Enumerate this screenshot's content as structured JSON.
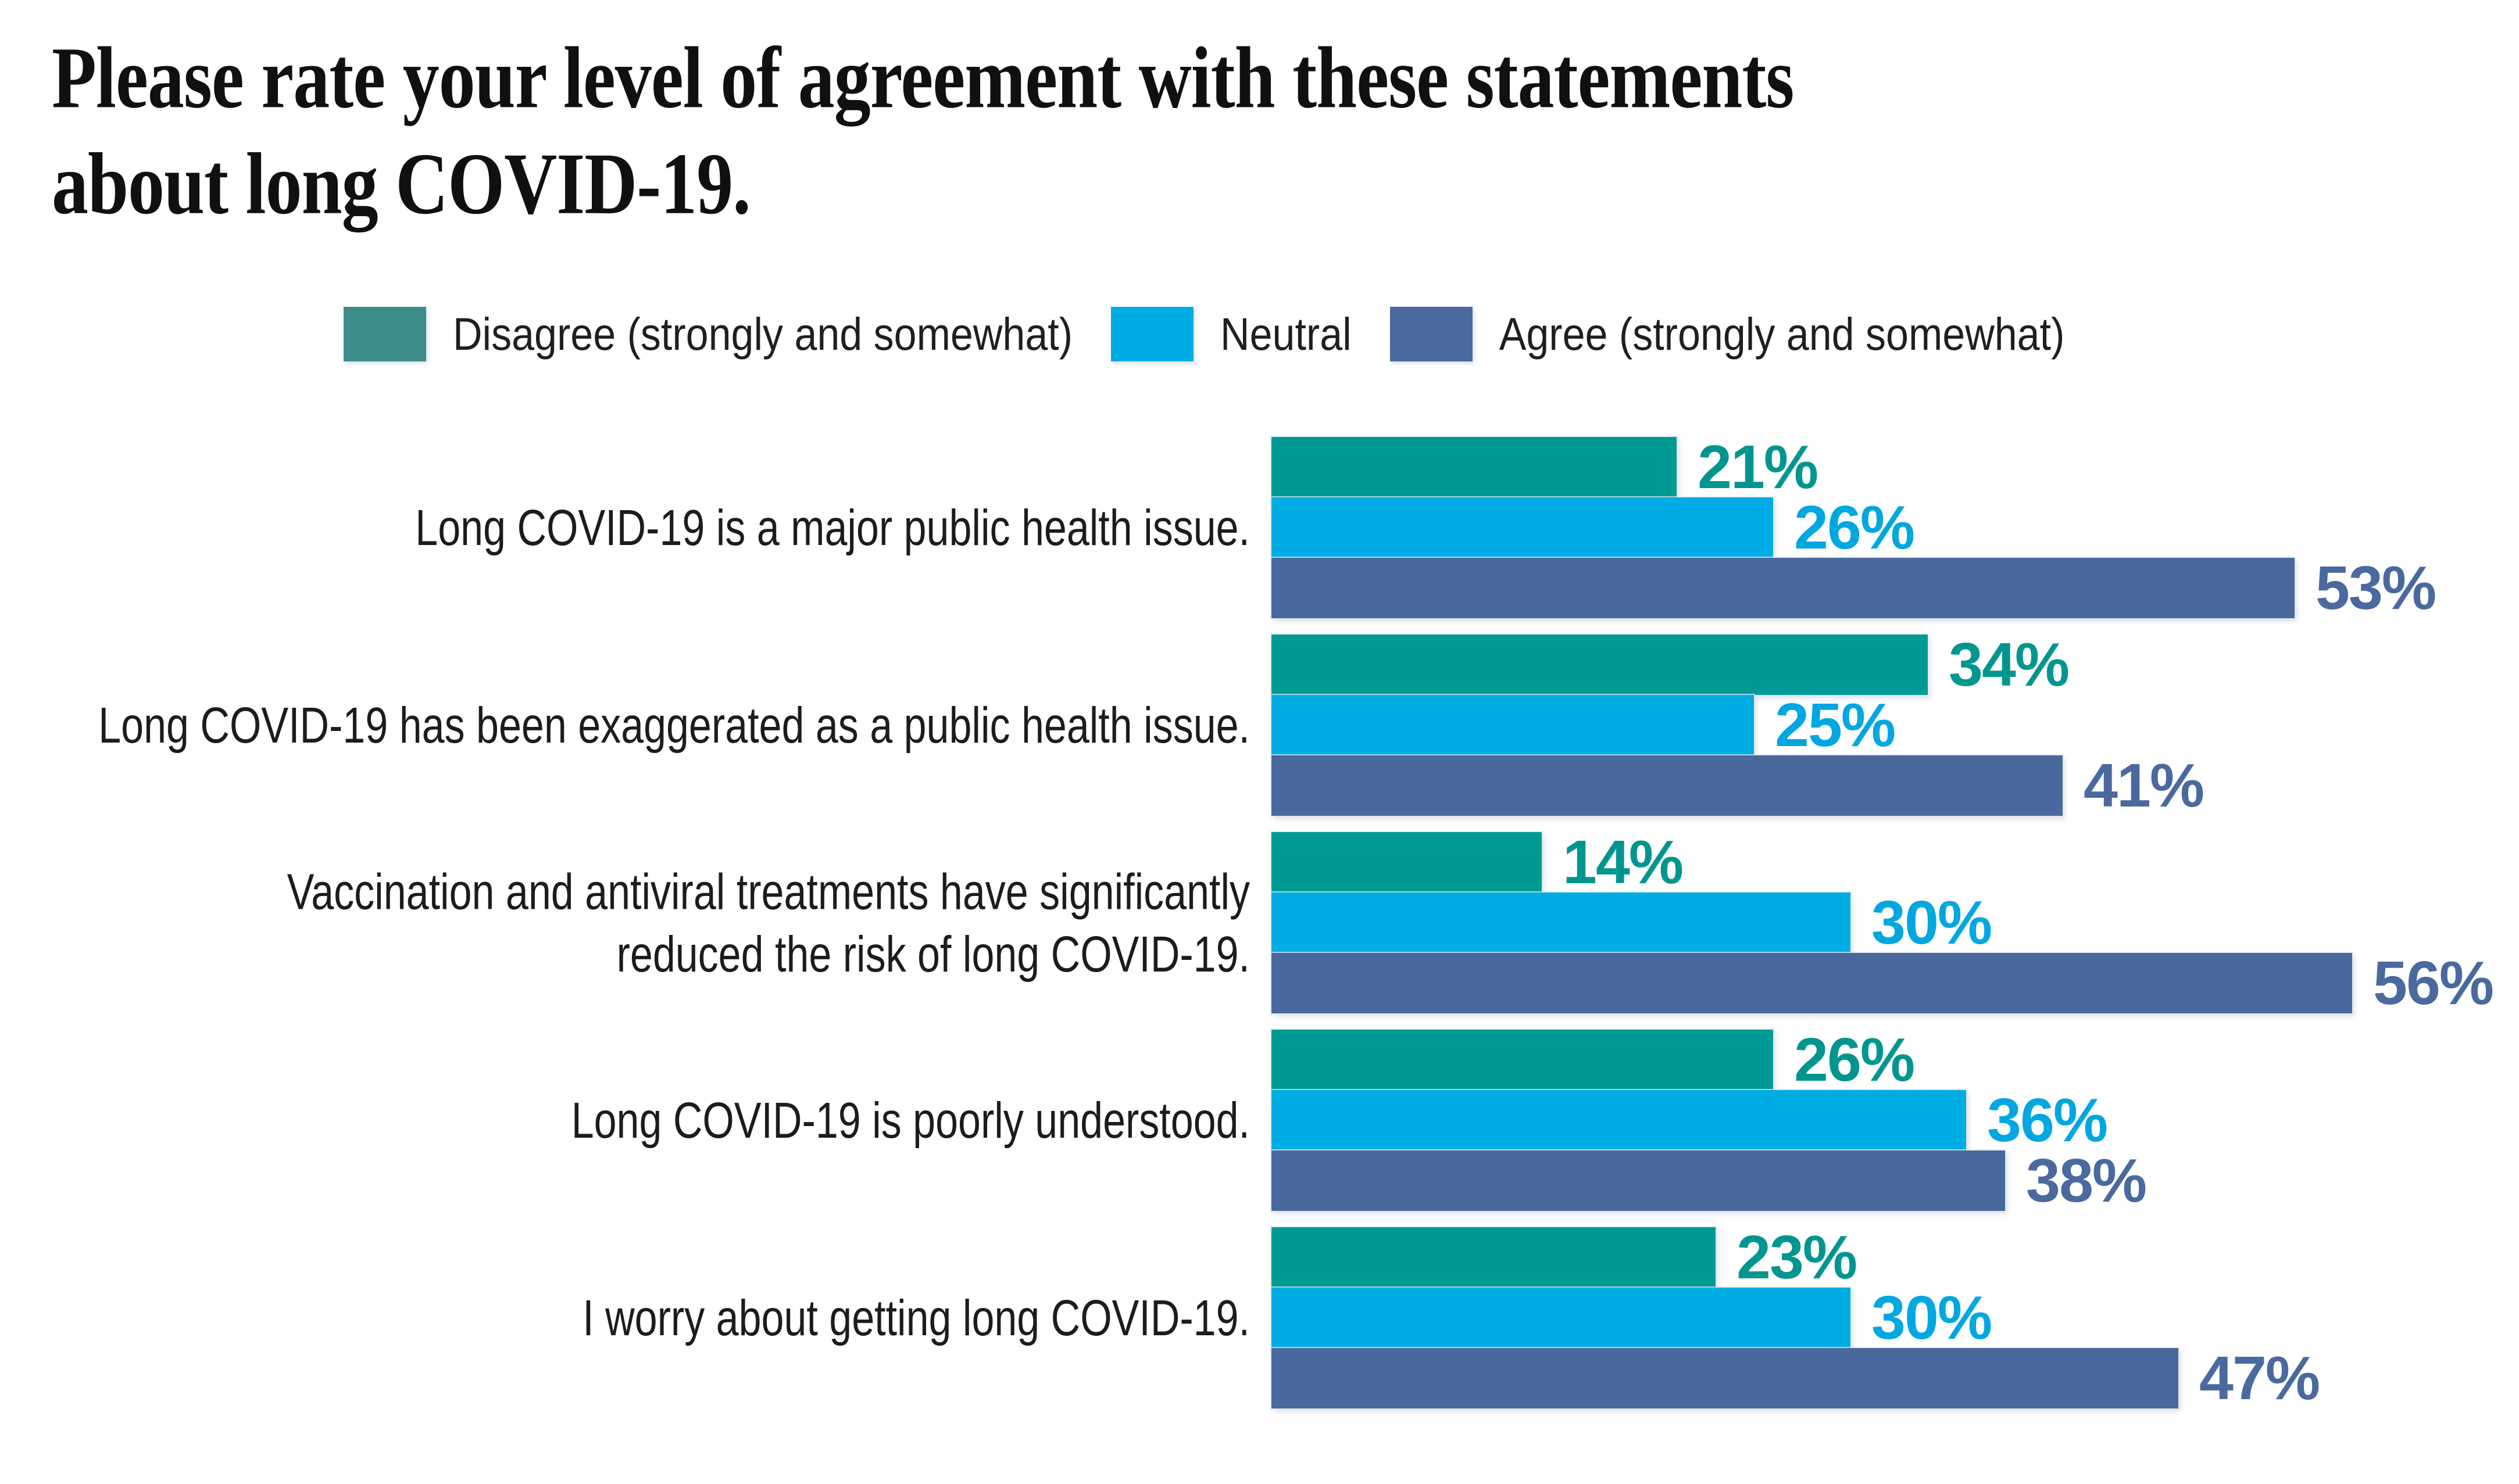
{
  "title": {
    "line1": "Please rate your level of agreement with these statements",
    "line2": "about long COVID-19."
  },
  "legend": {
    "position": "top",
    "items": [
      {
        "label": "Disagree (strongly and somewhat)",
        "swatch_color": "#3C8D8A"
      },
      {
        "label": "Neutral",
        "swatch_color": "#00ACE4"
      },
      {
        "label": "Agree (strongly and somewhat)",
        "swatch_color": "#4A699E"
      }
    ]
  },
  "chart_data": {
    "type": "bar",
    "orientation": "horizontal",
    "title": "Please rate your level of agreement with these statements about long COVID-19.",
    "categories": [
      "Long COVID-19 is a major public health issue.",
      "Long COVID-19 has been exaggerated as a public health issue.",
      "Vaccination and antiviral treatments have significantly\nreduced the risk of long COVID-19.",
      "Long COVID-19 is poorly understood.",
      "I worry about getting long COVID-19."
    ],
    "series": [
      {
        "name": "Disagree (strongly and somewhat)",
        "bar_color": "#009A94",
        "label_color": "#00968F",
        "values": [
          21,
          34,
          14,
          26,
          23
        ]
      },
      {
        "name": "Neutral",
        "bar_color": "#00ACE4",
        "label_color": "#00A7E0",
        "values": [
          26,
          25,
          30,
          36,
          30
        ]
      },
      {
        "name": "Agree (strongly and somewhat)",
        "bar_color": "#49689D",
        "label_color": "#4A699E",
        "values": [
          53,
          41,
          56,
          38,
          47
        ]
      }
    ],
    "value_suffix": "%",
    "xlim": [
      0,
      60
    ],
    "grid": false,
    "axes_hidden": true,
    "legend_position": "top"
  }
}
